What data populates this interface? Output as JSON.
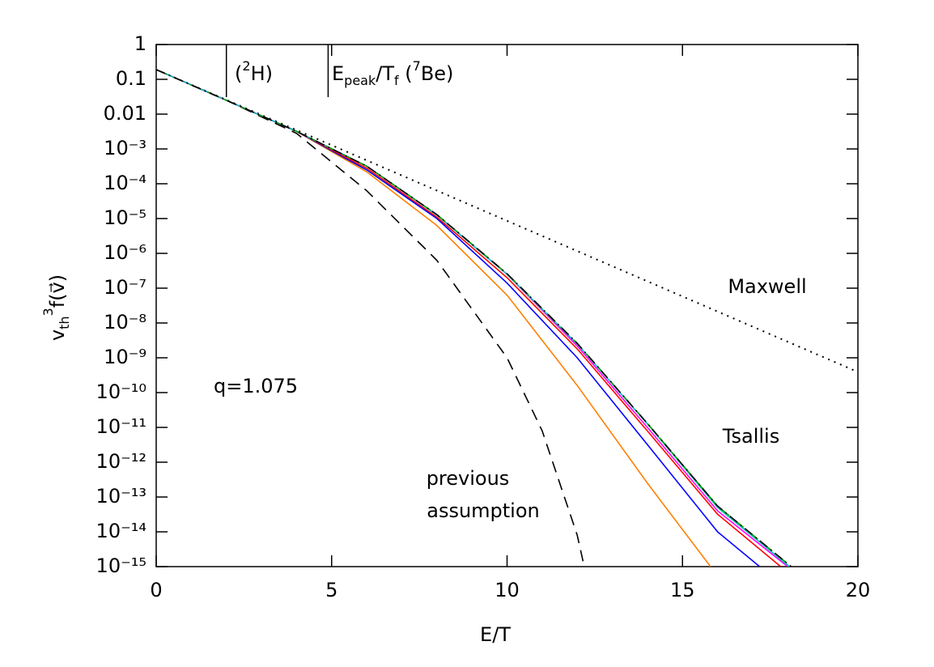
{
  "chart_data": {
    "type": "line",
    "xlabel": "E/T",
    "ylabel": [
      "v",
      "th",
      "3",
      "f(",
      "v⃗",
      ")"
    ],
    "xlim": [
      0,
      20
    ],
    "xticks": [
      0,
      5,
      10,
      15,
      20
    ],
    "ylim": [
      1e-15,
      1
    ],
    "log_y": true,
    "yticks": [
      1,
      0.1,
      0.01,
      {
        "value": 0.001,
        "label": "10⁻³"
      },
      {
        "value": 0.0001,
        "label": "10⁻⁴"
      },
      {
        "value": 1e-05,
        "label": "10⁻⁵"
      },
      {
        "value": 1e-06,
        "label": "10⁻⁶"
      },
      {
        "value": 1e-07,
        "label": "10⁻⁷"
      },
      {
        "value": 1e-08,
        "label": "10⁻⁸"
      },
      {
        "value": 1e-09,
        "label": "10⁻⁹"
      },
      {
        "value": 1e-10,
        "label": "10⁻¹⁰"
      },
      {
        "value": 1e-11,
        "label": "10⁻¹¹"
      },
      {
        "value": 1e-12,
        "label": "10⁻¹²"
      },
      {
        "value": 1e-13,
        "label": "10⁻¹³"
      },
      {
        "value": 1e-14,
        "label": "10⁻¹⁴"
      },
      {
        "value": 1e-15,
        "label": "10⁻¹⁵"
      }
    ],
    "markers": [
      {
        "x": 2,
        "label": [
          "(",
          "2",
          "H)"
        ]
      },
      {
        "x": 4.9,
        "label": [
          "E",
          "peak",
          "/T",
          "f",
          " (",
          "7",
          "Be)"
        ]
      }
    ],
    "annotations": [
      "Maxwell",
      "Tsallis",
      "q=1.075",
      "previous",
      "assumption"
    ],
    "series": [
      {
        "color": "#000000",
        "dash": "dotted",
        "x": [
          0,
          5,
          10,
          15,
          20
        ],
        "values": [
          0.19,
          0.00128,
          8.6e-06,
          5.8e-08,
          3.9e-10
        ]
      },
      {
        "color": "#000000",
        "dash": "dashed",
        "x": [
          0,
          2,
          4,
          6,
          8,
          10,
          11,
          12,
          12.2
        ],
        "values": [
          0.19,
          0.025,
          0.0028,
          6.3e-05,
          6.3e-07,
          1e-09,
          8e-12,
          8e-15,
          1e-15
        ]
      },
      {
        "color": "#ff8000",
        "dash": "solid",
        "x": [
          0,
          2,
          4,
          6,
          8,
          10,
          12,
          14,
          15.8
        ],
        "values": [
          0.19,
          0.025,
          0.0032,
          0.00022,
          6.3e-06,
          6.3e-08,
          1.6e-10,
          2.5e-13,
          1e-15
        ]
      },
      {
        "color": "#0000ff",
        "dash": "solid",
        "x": [
          0,
          2,
          4,
          6,
          8,
          10,
          12,
          14,
          16,
          17.2
        ],
        "values": [
          0.19,
          0.025,
          0.0032,
          0.00025,
          1e-05,
          1.4e-07,
          1e-09,
          3.2e-12,
          1e-14,
          1e-15
        ]
      },
      {
        "color": "#ff0000",
        "dash": "solid",
        "x": [
          0,
          2,
          4,
          6,
          8,
          10,
          12,
          14,
          16,
          17.8
        ],
        "values": [
          0.19,
          0.025,
          0.0032,
          0.00028,
          1.1e-05,
          2e-07,
          1.8e-09,
          7.9e-12,
          3.2e-14,
          1e-15
        ]
      },
      {
        "color": "#ff00ff",
        "dash": "solid",
        "x": [
          0,
          2,
          4,
          6,
          8,
          10,
          12,
          14,
          16,
          18
        ],
        "values": [
          0.19,
          0.025,
          0.0032,
          0.00032,
          1.26e-05,
          2.5e-07,
          2.2e-09,
          1e-11,
          4e-14,
          1e-15
        ]
      },
      {
        "color": "#00c0c0",
        "dash": "solid",
        "x": [
          0,
          2,
          4,
          6,
          8,
          10,
          12,
          14,
          16,
          18.05
        ],
        "values": [
          0.19,
          0.025,
          0.0032,
          0.00032,
          1.26e-05,
          2.5e-07,
          2.5e-09,
          1.26e-11,
          5e-14,
          1e-15
        ]
      },
      {
        "color": "#00a000",
        "dash": "dashed",
        "x": [
          0,
          2,
          4,
          6,
          8,
          10,
          12,
          14,
          16,
          18.1
        ],
        "values": [
          0.19,
          0.025,
          0.0032,
          0.00032,
          1.3e-05,
          2.6e-07,
          2.6e-09,
          1.3e-11,
          5.5e-14,
          1e-15
        ]
      },
      {
        "color": "#000000",
        "dash": "dashdot",
        "x": [
          0,
          2,
          4,
          6,
          8,
          10,
          12,
          14,
          16,
          18.1
        ],
        "values": [
          0.19,
          0.025,
          0.0032,
          0.00032,
          1.3e-05,
          2.6e-07,
          2.6e-09,
          1.3e-11,
          5.5e-14,
          1e-15
        ]
      }
    ]
  }
}
